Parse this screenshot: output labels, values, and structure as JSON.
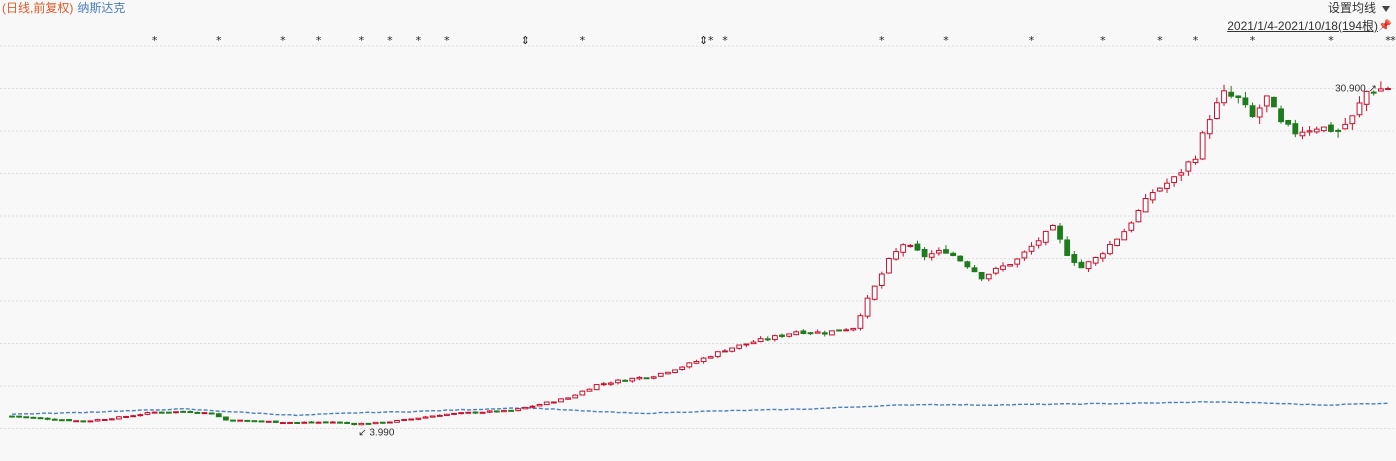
{
  "header": {
    "period_label": "(日线,前复权)",
    "index_label": "纳斯达克",
    "ma_setting_label": "设置均线",
    "range_label": "2021/1/4-2021/10/18(194根)",
    "pin_icon": "pin-icon"
  },
  "chart_data": {
    "type": "candlestick",
    "bars": 194,
    "date_range": [
      "2021/1/4",
      "2021/10/18"
    ],
    "ylim": [
      2,
      33
    ],
    "grid": "horizontal-dashed",
    "annotations": {
      "high": "30.900",
      "low": "3.990"
    },
    "event_markers": {
      "symbols": [
        "*",
        "*",
        "*",
        "*",
        "*",
        "*",
        "*",
        "*",
        "⇕",
        "*",
        "⇕",
        "*",
        "*",
        "*",
        "*",
        "*",
        "*",
        "*",
        "*",
        "*",
        "*",
        "*",
        "*"
      ],
      "bar_index": [
        20,
        29,
        38,
        43,
        49,
        53,
        57,
        61,
        72,
        80,
        97,
        98,
        100,
        122,
        131,
        143,
        153,
        161,
        166,
        174,
        185,
        193,
        193
      ]
    },
    "colors": {
      "up": "#c8102e",
      "down": "#1e7b1e",
      "index_line": "#4a7fc1"
    },
    "price_key": [
      [
        0,
        4.6
      ],
      [
        5,
        4.4
      ],
      [
        10,
        4.2
      ],
      [
        15,
        4.5
      ],
      [
        20,
        4.9
      ],
      [
        25,
        4.95
      ],
      [
        28,
        4.8
      ],
      [
        30,
        4.3
      ],
      [
        35,
        4.2
      ],
      [
        40,
        4.1
      ],
      [
        45,
        4.15
      ],
      [
        48,
        4.0
      ],
      [
        52,
        4.1
      ],
      [
        55,
        4.3
      ],
      [
        60,
        4.7
      ],
      [
        65,
        4.9
      ],
      [
        70,
        5.0
      ],
      [
        74,
        5.5
      ],
      [
        78,
        6.0
      ],
      [
        82,
        7.0
      ],
      [
        86,
        7.4
      ],
      [
        90,
        7.7
      ],
      [
        94,
        8.4
      ],
      [
        96,
        8.8
      ],
      [
        100,
        9.7
      ],
      [
        104,
        10.3
      ],
      [
        108,
        10.8
      ],
      [
        110,
        11.1
      ],
      [
        114,
        11.0
      ],
      [
        118,
        11.4
      ],
      [
        120,
        13.5
      ],
      [
        123,
        16.5
      ],
      [
        125,
        17.8
      ],
      [
        128,
        16.9
      ],
      [
        131,
        17.3
      ],
      [
        134,
        16.2
      ],
      [
        136,
        15.3
      ],
      [
        138,
        15.8
      ],
      [
        141,
        16.6
      ],
      [
        144,
        18.1
      ],
      [
        146,
        19.0
      ],
      [
        148,
        17.1
      ],
      [
        150,
        16.0
      ],
      [
        152,
        16.7
      ],
      [
        156,
        18.8
      ],
      [
        160,
        21.8
      ],
      [
        163,
        22.8
      ],
      [
        166,
        24.6
      ],
      [
        168,
        27.6
      ],
      [
        170,
        29.3
      ],
      [
        172,
        28.9
      ],
      [
        174,
        27.5
      ],
      [
        176,
        29.0
      ],
      [
        178,
        27.0
      ],
      [
        180,
        26.4
      ],
      [
        183,
        26.8
      ],
      [
        186,
        26.5
      ],
      [
        188,
        27.5
      ],
      [
        190,
        29.5
      ],
      [
        193,
        29.8
      ]
    ],
    "index_key": [
      [
        0,
        4.75
      ],
      [
        8,
        4.85
      ],
      [
        16,
        5.0
      ],
      [
        24,
        5.15
      ],
      [
        32,
        4.9
      ],
      [
        40,
        4.65
      ],
      [
        48,
        4.85
      ],
      [
        56,
        4.95
      ],
      [
        64,
        5.1
      ],
      [
        72,
        5.25
      ],
      [
        80,
        5.0
      ],
      [
        88,
        4.8
      ],
      [
        96,
        4.95
      ],
      [
        104,
        5.05
      ],
      [
        112,
        5.15
      ],
      [
        120,
        5.35
      ],
      [
        128,
        5.5
      ],
      [
        136,
        5.45
      ],
      [
        144,
        5.5
      ],
      [
        152,
        5.55
      ],
      [
        160,
        5.6
      ],
      [
        168,
        5.7
      ],
      [
        176,
        5.6
      ],
      [
        184,
        5.45
      ],
      [
        193,
        5.6
      ]
    ]
  }
}
